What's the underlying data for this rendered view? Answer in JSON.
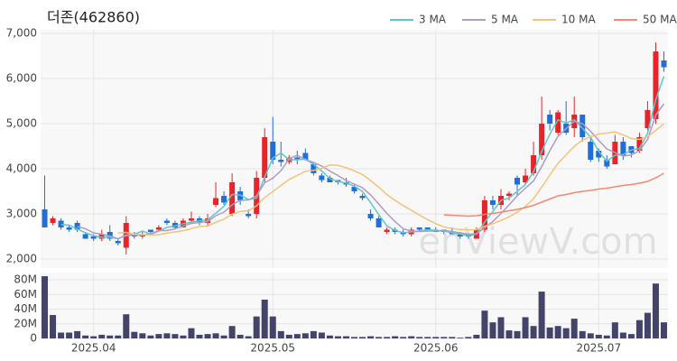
{
  "chart_data": {
    "type": "candlestick",
    "title": "더존(462860)",
    "watermark": "enViewV.com",
    "categories": [
      null,
      null,
      null,
      null,
      null,
      null,
      "2025.04",
      null,
      null,
      null,
      null,
      null,
      null,
      null,
      null,
      null,
      null,
      null,
      null,
      null,
      null,
      null,
      null,
      null,
      null,
      null,
      null,
      null,
      "2025.05",
      null,
      null,
      null,
      null,
      null,
      null,
      null,
      null,
      null,
      null,
      null,
      null,
      null,
      null,
      null,
      null,
      null,
      null,
      null,
      "2025.06",
      null,
      null,
      null,
      null,
      null,
      null,
      null,
      null,
      null,
      null,
      null,
      null,
      null,
      null,
      null,
      null,
      null,
      null,
      null,
      "2025.07",
      null,
      null,
      null,
      null,
      null,
      null,
      null,
      null
    ],
    "open": [
      3100,
      2800,
      2850,
      2700,
      2800,
      2550,
      2500,
      2450,
      2600,
      2400,
      2250,
      2550,
      2500,
      2650,
      2650,
      2850,
      2800,
      2700,
      2850,
      2900,
      2800,
      3200,
      3400,
      3000,
      3500,
      3000,
      3000,
      3800,
      4600,
      4200,
      4150,
      4250,
      4350,
      4100,
      3850,
      3800,
      3750,
      3700,
      3600,
      3400,
      3000,
      2900,
      2600,
      2650,
      2600,
      2550,
      2700,
      2700,
      2650,
      2650,
      2600,
      2550,
      2550,
      2450,
      2650,
      3300,
      3200,
      3400,
      3800,
      3700,
      3900,
      4300,
      5200,
      4800,
      5000,
      4900,
      5200,
      4600,
      4400,
      4200,
      4100,
      4600,
      4500,
      4400,
      4900,
      5100,
      6400
    ],
    "high": [
      3850,
      2950,
      2900,
      2750,
      2850,
      2600,
      2550,
      2650,
      2750,
      2450,
      2950,
      2600,
      2600,
      2650,
      2750,
      2900,
      2850,
      2900,
      3050,
      2950,
      3000,
      3700,
      3500,
      3900,
      3600,
      3100,
      3950,
      4900,
      5150,
      4600,
      4300,
      4400,
      4450,
      4150,
      3900,
      3850,
      3750,
      3800,
      3650,
      3450,
      3100,
      2950,
      2700,
      2700,
      2650,
      2700,
      2700,
      2700,
      2700,
      2650,
      2700,
      2600,
      2550,
      2700,
      3400,
      3400,
      3550,
      3500,
      3850,
      4000,
      4600,
      5600,
      5300,
      5300,
      5500,
      5600,
      5200,
      4700,
      4450,
      4300,
      4750,
      4700,
      4500,
      4800,
      5500,
      6800,
      6600
    ],
    "low": [
      2700,
      2750,
      2650,
      2600,
      2600,
      2450,
      2400,
      2400,
      2400,
      2300,
      2100,
      2450,
      2450,
      2550,
      2600,
      2750,
      2650,
      2700,
      2800,
      2750,
      2750,
      3150,
      3200,
      2950,
      3200,
      2900,
      2900,
      3700,
      4100,
      4050,
      4100,
      4100,
      4200,
      3850,
      3700,
      3700,
      3650,
      3600,
      3450,
      3300,
      2850,
      2700,
      2550,
      2550,
      2500,
      2500,
      2600,
      2600,
      2600,
      2550,
      2550,
      2450,
      2450,
      2450,
      2600,
      3100,
      3100,
      3300,
      3400,
      3650,
      3850,
      4200,
      4850,
      4750,
      4750,
      4700,
      4600,
      4150,
      4150,
      4000,
      4100,
      4200,
      4250,
      4350,
      4850,
      5000,
      6150
    ],
    "close": [
      2700,
      2900,
      2700,
      2650,
      2650,
      2450,
      2450,
      2550,
      2450,
      2350,
      2800,
      2500,
      2550,
      2600,
      2700,
      2800,
      2700,
      2850,
      2900,
      2800,
      2900,
      3350,
      3250,
      3700,
      3300,
      2950,
      3800,
      4700,
      4200,
      4150,
      4250,
      4200,
      4200,
      3900,
      3750,
      3700,
      3700,
      3650,
      3500,
      3350,
      2900,
      2700,
      2650,
      2600,
      2550,
      2650,
      2650,
      2650,
      2600,
      2600,
      2550,
      2500,
      2500,
      2650,
      3300,
      3200,
      3400,
      3450,
      3650,
      3850,
      4300,
      5000,
      5000,
      5250,
      4800,
      5200,
      4700,
      4200,
      4250,
      4050,
      4600,
      4300,
      4350,
      4700,
      5300,
      6600,
      6250
    ],
    "volume": [
      85000000,
      32000000,
      8000000,
      8000000,
      10000000,
      4000000,
      3000000,
      5000000,
      4000000,
      4000000,
      33000000,
      9000000,
      7000000,
      4000000,
      6000000,
      7000000,
      6000000,
      4000000,
      14000000,
      5000000,
      6000000,
      7000000,
      4000000,
      17000000,
      5000000,
      3000000,
      30000000,
      53000000,
      30000000,
      10000000,
      5000000,
      6000000,
      7000000,
      10000000,
      8000000,
      4000000,
      3000000,
      3000000,
      2000000,
      2000000,
      3000000,
      2000000,
      2000000,
      3000000,
      2000000,
      3000000,
      2000000,
      2000000,
      2000000,
      2000000,
      2000000,
      1000000,
      2000000,
      5000000,
      38000000,
      22000000,
      29000000,
      11000000,
      10000000,
      29000000,
      17000000,
      64000000,
      15000000,
      17000000,
      14000000,
      27000000,
      10000000,
      7000000,
      5000000,
      4000000,
      22000000,
      8000000,
      6000000,
      25000000,
      35000000,
      75000000,
      22000000
    ],
    "up_color": "#e8242a",
    "down_color": "#1f6fd6",
    "volume_color": "#44446a",
    "series": [
      {
        "name": "3 MA",
        "color": "#5ec8c8",
        "values": [
          null,
          null,
          2767,
          2750,
          2667,
          2583,
          2517,
          2483,
          2483,
          2450,
          2533,
          2550,
          2617,
          2550,
          2617,
          2700,
          2733,
          2783,
          2817,
          2850,
          2867,
          3017,
          3167,
          3433,
          3417,
          3317,
          3350,
          3817,
          4233,
          4350,
          4200,
          4200,
          4217,
          4100,
          3950,
          3783,
          3717,
          3683,
          3617,
          3500,
          3250,
          2983,
          2733,
          2633,
          2583,
          2600,
          2617,
          2650,
          2633,
          2617,
          2583,
          2550,
          2517,
          2550,
          2817,
          3050,
          3300,
          3350,
          3500,
          3650,
          3933,
          4383,
          4767,
          5083,
          5017,
          5083,
          4900,
          4700,
          4383,
          4167,
          4300,
          4317,
          4417,
          4450,
          4783,
          5533,
          6050
        ]
      },
      {
        "name": "5 MA",
        "color": "#b09ac8",
        "values": [
          null,
          null,
          null,
          null,
          2720,
          2670,
          2580,
          2550,
          2510,
          2450,
          2520,
          2530,
          2530,
          2560,
          2630,
          2630,
          2670,
          2730,
          2790,
          2810,
          2830,
          2960,
          3040,
          3200,
          3300,
          3310,
          3400,
          3690,
          3790,
          3960,
          4220,
          4300,
          4200,
          4140,
          4060,
          3950,
          3850,
          3740,
          3660,
          3580,
          3420,
          3220,
          3010,
          2830,
          2670,
          2620,
          2610,
          2620,
          2620,
          2630,
          2610,
          2580,
          2550,
          2560,
          2690,
          2830,
          3010,
          3200,
          3400,
          3570,
          3730,
          4050,
          4400,
          4720,
          4890,
          5050,
          5000,
          4830,
          4630,
          4440,
          4360,
          4280,
          4310,
          4400,
          4650,
          5190,
          5440
        ]
      },
      {
        "name": "10 MA",
        "color": "#f5c27a",
        "values": [
          null,
          null,
          null,
          null,
          null,
          null,
          null,
          null,
          null,
          2580,
          2590,
          2550,
          2540,
          2535,
          2540,
          2575,
          2600,
          2630,
          2675,
          2720,
          2730,
          2815,
          2885,
          2995,
          3055,
          3070,
          3180,
          3365,
          3495,
          3630,
          3765,
          3850,
          3945,
          3965,
          4010,
          4085,
          4075,
          4025,
          3955,
          3875,
          3740,
          3590,
          3430,
          3300,
          3185,
          3080,
          2975,
          2875,
          2785,
          2710,
          2675,
          2655,
          2645,
          2650,
          2725,
          2780,
          2855,
          2935,
          3040,
          3165,
          3340,
          3590,
          3860,
          4120,
          4310,
          4500,
          4630,
          4710,
          4770,
          4790,
          4820,
          4750,
          4670,
          4650,
          4710,
          4850,
          5000
        ]
      },
      {
        "name": "50 MA",
        "color": "#f08a70",
        "values": [
          null,
          null,
          null,
          null,
          null,
          null,
          null,
          null,
          null,
          null,
          null,
          null,
          null,
          null,
          null,
          null,
          null,
          null,
          null,
          null,
          null,
          null,
          null,
          null,
          null,
          null,
          null,
          null,
          null,
          null,
          null,
          null,
          null,
          null,
          null,
          null,
          null,
          null,
          null,
          null,
          null,
          null,
          null,
          null,
          null,
          null,
          null,
          null,
          null,
          2980,
          2970,
          2960,
          2950,
          2960,
          2990,
          3010,
          3040,
          3070,
          3100,
          3140,
          3190,
          3260,
          3330,
          3400,
          3430,
          3470,
          3500,
          3520,
          3550,
          3570,
          3600,
          3630,
          3650,
          3680,
          3720,
          3800,
          3900
        ]
      }
    ],
    "ylim": [
      1800,
      7080
    ],
    "yticks": [
      {
        "value": 2000,
        "label": "2,000"
      },
      {
        "value": 3000,
        "label": "3,000"
      },
      {
        "value": 4000,
        "label": "4,000"
      },
      {
        "value": 5000,
        "label": "5,000"
      },
      {
        "value": 6000,
        "label": "6,000"
      },
      {
        "value": 7000,
        "label": "7,000"
      }
    ],
    "vlim": [
      0,
      90000000
    ],
    "vticks": [
      0,
      {
        "value": 20000000,
        "label": "20M"
      },
      {
        "value": 40000000,
        "label": "40M"
      },
      {
        "value": 60000000,
        "label": "60M"
      },
      {
        "value": 80000000,
        "label": "80M"
      }
    ],
    "grid": true,
    "legend": "top-right"
  }
}
